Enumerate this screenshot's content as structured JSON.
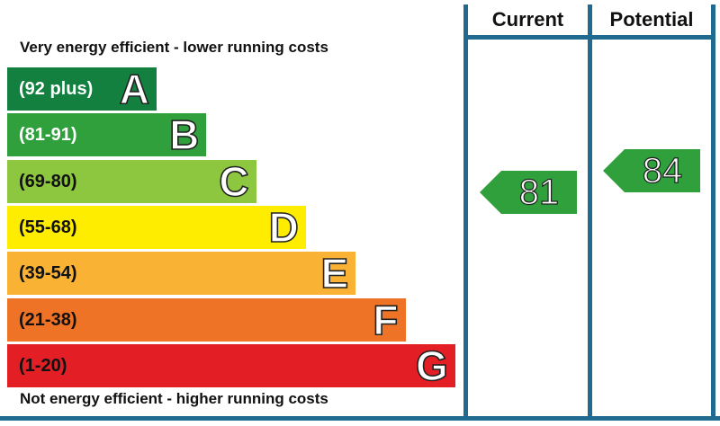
{
  "chart_data": {
    "type": "bar",
    "title": "",
    "top_caption": "Very energy efficient - lower running costs",
    "bottom_caption": "Not energy efficient - higher running costs",
    "bands": [
      {
        "letter": "A",
        "range": "(92 plus)",
        "min": 92,
        "max": 100,
        "color": "#138040",
        "range_text_color": "#ffffff"
      },
      {
        "letter": "B",
        "range": "(81-91)",
        "min": 81,
        "max": 91,
        "color": "#2fa03b",
        "range_text_color": "#ffffff"
      },
      {
        "letter": "C",
        "range": "(69-80)",
        "min": 69,
        "max": 80,
        "color": "#8dc63f",
        "range_text_color": "#111111"
      },
      {
        "letter": "D",
        "range": "(55-68)",
        "min": 55,
        "max": 68,
        "color": "#ffed00",
        "range_text_color": "#111111"
      },
      {
        "letter": "E",
        "range": "(39-54)",
        "min": 39,
        "max": 54,
        "color": "#f9b233",
        "range_text_color": "#111111"
      },
      {
        "letter": "F",
        "range": "(21-38)",
        "min": 21,
        "max": 38,
        "color": "#ee7326",
        "range_text_color": "#111111"
      },
      {
        "letter": "G",
        "range": "(1-20)",
        "min": 1,
        "max": 20,
        "color": "#e31e24",
        "range_text_color": "#111111"
      }
    ],
    "columns": [
      "Current",
      "Potential"
    ],
    "ratings": [
      {
        "column": "Current",
        "value": 81,
        "band": "B",
        "color": "#2fa03b"
      },
      {
        "column": "Potential",
        "value": 84,
        "band": "B",
        "color": "#2fa03b"
      }
    ],
    "line_color": "#1f6a8e"
  }
}
